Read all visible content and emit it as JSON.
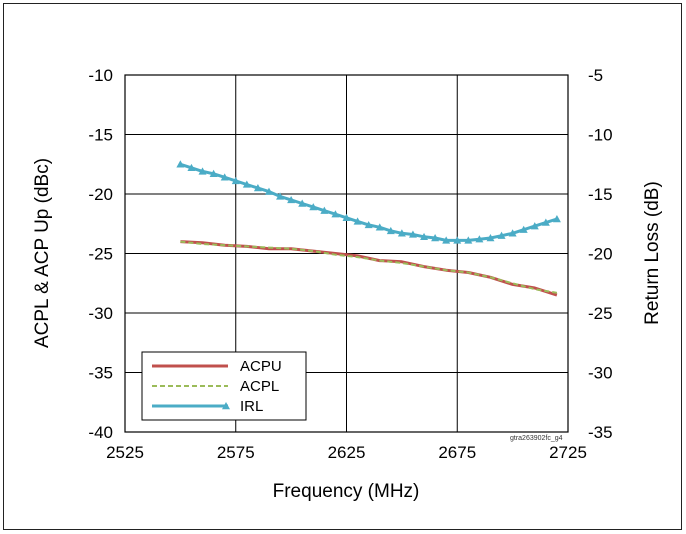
{
  "chart_data": {
    "type": "line",
    "xlabel": "Frequency (MHz)",
    "ylabel_left": "ACPL & ACP Up (dBc)",
    "ylabel_right": "Return Loss (dB)",
    "xlim": [
      2525,
      2725
    ],
    "ylim_left": [
      -40,
      -10
    ],
    "ylim_right": [
      -35,
      -5
    ],
    "xticks": [
      "2525",
      "2575",
      "2625",
      "2675",
      "2725"
    ],
    "yticks_left": [
      "-10",
      "-15",
      "-20",
      "-25",
      "-30",
      "-35",
      "-40"
    ],
    "yticks_right": [
      "-5",
      "-10",
      "-15",
      "-20",
      "-25",
      "-30",
      "-35"
    ],
    "grid": true,
    "legend_position": "bottom-left",
    "note": "gtra263902fc_g4",
    "series": [
      {
        "name": "ACPU",
        "color": "#c0504d",
        "style": "solid",
        "axis": "left",
        "points": [
          [
            2550,
            -24.0
          ],
          [
            2560,
            -24.1
          ],
          [
            2570,
            -24.3
          ],
          [
            2580,
            -24.4
          ],
          [
            2590,
            -24.6
          ],
          [
            2600,
            -24.6
          ],
          [
            2610,
            -24.8
          ],
          [
            2620,
            -25.0
          ],
          [
            2630,
            -25.2
          ],
          [
            2640,
            -25.6
          ],
          [
            2650,
            -25.7
          ],
          [
            2660,
            -26.1
          ],
          [
            2670,
            -26.4
          ],
          [
            2680,
            -26.6
          ],
          [
            2690,
            -27.0
          ],
          [
            2700,
            -27.6
          ],
          [
            2710,
            -27.9
          ],
          [
            2720,
            -28.5
          ]
        ]
      },
      {
        "name": "ACPL",
        "color": "#9bbb59",
        "style": "dashed",
        "axis": "left",
        "points": [
          [
            2550,
            -24.0
          ],
          [
            2560,
            -24.2
          ],
          [
            2570,
            -24.3
          ],
          [
            2580,
            -24.4
          ],
          [
            2590,
            -24.5
          ],
          [
            2600,
            -24.6
          ],
          [
            2610,
            -24.8
          ],
          [
            2620,
            -25.1
          ],
          [
            2630,
            -25.3
          ],
          [
            2640,
            -25.6
          ],
          [
            2650,
            -25.8
          ],
          [
            2660,
            -26.1
          ],
          [
            2670,
            -26.4
          ],
          [
            2680,
            -26.6
          ],
          [
            2690,
            -27.0
          ],
          [
            2700,
            -27.5
          ],
          [
            2710,
            -28.0
          ],
          [
            2720,
            -28.3
          ]
        ]
      },
      {
        "name": "IRL",
        "color": "#4bacc6",
        "style": "solid-triangle-markers",
        "axis": "right",
        "points": [
          [
            2550,
            -12.5
          ],
          [
            2555,
            -12.8
          ],
          [
            2560,
            -13.1
          ],
          [
            2565,
            -13.3
          ],
          [
            2570,
            -13.6
          ],
          [
            2575,
            -13.9
          ],
          [
            2580,
            -14.2
          ],
          [
            2585,
            -14.5
          ],
          [
            2590,
            -14.8
          ],
          [
            2595,
            -15.2
          ],
          [
            2600,
            -15.5
          ],
          [
            2605,
            -15.8
          ],
          [
            2610,
            -16.1
          ],
          [
            2615,
            -16.4
          ],
          [
            2620,
            -16.7
          ],
          [
            2625,
            -17.0
          ],
          [
            2630,
            -17.3
          ],
          [
            2635,
            -17.6
          ],
          [
            2640,
            -17.8
          ],
          [
            2645,
            -18.1
          ],
          [
            2650,
            -18.3
          ],
          [
            2655,
            -18.4
          ],
          [
            2660,
            -18.6
          ],
          [
            2665,
            -18.7
          ],
          [
            2670,
            -18.9
          ],
          [
            2675,
            -18.9
          ],
          [
            2680,
            -18.9
          ],
          [
            2685,
            -18.8
          ],
          [
            2690,
            -18.7
          ],
          [
            2695,
            -18.5
          ],
          [
            2700,
            -18.3
          ],
          [
            2705,
            -18.0
          ],
          [
            2710,
            -17.7
          ],
          [
            2715,
            -17.4
          ],
          [
            2720,
            -17.1
          ]
        ]
      }
    ]
  }
}
